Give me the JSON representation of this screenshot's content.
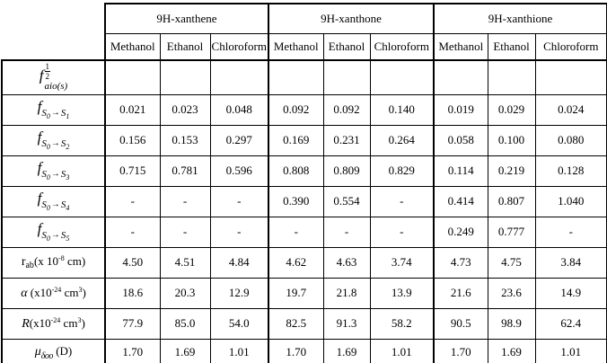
{
  "table": {
    "groups": [
      {
        "label": "9H-xanthene"
      },
      {
        "label": "9H-xanthone"
      },
      {
        "label": "9H-xanthione"
      }
    ],
    "solvent_headers": [
      "Methanol",
      "Ethanol",
      "Chloroform",
      "Methanol",
      "Ethanol",
      "Chloroform",
      "Methanol",
      "Ethanol",
      "Chloroform"
    ],
    "rows": [
      {
        "label": {
          "base": "f",
          "sup_num": "1",
          "sup_den": "2",
          "sub": "aio(s)"
        },
        "values": [
          "",
          "",
          "",
          "",
          "",
          "",
          "",
          "",
          ""
        ]
      },
      {
        "label": {
          "base": "f",
          "s": "S",
          "s0": "0",
          "arrow": "→",
          "s2": "S",
          "sn": "1"
        },
        "values": [
          "0.021",
          "0.023",
          "0.048",
          "0.092",
          "0.092",
          "0.140",
          "0.019",
          "0.029",
          "0.024"
        ]
      },
      {
        "label": {
          "base": "f",
          "s": "S",
          "s0": "0",
          "arrow": "→",
          "s2": "S",
          "sn": "2"
        },
        "values": [
          "0.156",
          "0.153",
          "0.297",
          "0.169",
          "0.231",
          "0.264",
          "0.058",
          "0.100",
          "0.080"
        ]
      },
      {
        "label": {
          "base": "f",
          "s": "S",
          "s0": "0",
          "arrow": "→",
          "s2": "S",
          "sn": "3"
        },
        "values": [
          "0.715",
          "0.781",
          "0.596",
          "0.808",
          "0.809",
          "0.829",
          "0.114",
          "0.219",
          "0.128"
        ]
      },
      {
        "label": {
          "base": "f",
          "s": "S",
          "s0": "0",
          "arrow": "→",
          "s2": "S",
          "sn": "4"
        },
        "values": [
          "-",
          "-",
          "-",
          "0.390",
          "0.554",
          "-",
          "0.414",
          "0.807",
          "1.040"
        ]
      },
      {
        "label": {
          "base": "f",
          "s": "S",
          "s0": "0",
          "arrow": "→",
          "s2": "S",
          "sn": "5"
        },
        "values": [
          "-",
          "-",
          "-",
          "-",
          "-",
          "-",
          "0.249",
          "0.777",
          "-"
        ]
      },
      {
        "label": {
          "pre": "r",
          "sub": "ab",
          "mid": "(x 10",
          "exp": "-8",
          "post": " cm)"
        },
        "values": [
          "4.50",
          "4.51",
          "4.84",
          "4.62",
          "4.63",
          "3.74",
          "4.73",
          "4.75",
          "3.84"
        ]
      },
      {
        "label": {
          "sym": "α",
          "open": " (x10",
          "exp": "-24",
          "unit": " cm",
          "cube": "3",
          "close": ")"
        },
        "values": [
          "18.6",
          "20.3",
          "12.9",
          "19.7",
          "21.8",
          "13.9",
          "21.6",
          "23.6",
          "14.9"
        ]
      },
      {
        "label": {
          "sym": "R",
          "open": "(x10",
          "exp": "-24",
          "unit": " cm",
          "cube": "3",
          "close": ")"
        },
        "values": [
          "77.9",
          "85.0",
          "54.0",
          "82.5",
          "91.3",
          "58.2",
          "90.5",
          "98.9",
          "62.4"
        ]
      },
      {
        "label": {
          "sym": "μ",
          "sub": "δoo",
          "unit": " (D)"
        },
        "values": [
          "1.70",
          "1.69",
          "1.01",
          "1.70",
          "1.69",
          "1.01",
          "1.70",
          "1.69",
          "1.01"
        ]
      }
    ]
  }
}
